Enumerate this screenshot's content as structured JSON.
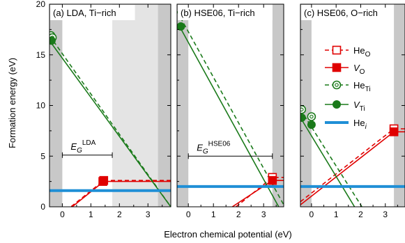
{
  "figure": {
    "ylabel": "Formation energy (eV)",
    "xlabel": "Electron chemical potential (eV)",
    "yticks": [
      "0",
      "5",
      "10",
      "15",
      "20"
    ]
  },
  "legend": [
    {
      "key": "He_O",
      "base": "He",
      "sub": "O",
      "italic": false,
      "color": "#e00000",
      "style": "dashed",
      "marker": "open-square"
    },
    {
      "key": "V_O",
      "base": "V",
      "sub": "O",
      "italic": true,
      "color": "#e00000",
      "style": "solid",
      "marker": "filled-square"
    },
    {
      "key": "He_Ti",
      "base": "He",
      "sub": "Ti",
      "italic": false,
      "color": "#1a7a1a",
      "style": "dashed",
      "marker": "open-circle"
    },
    {
      "key": "V_Ti",
      "base": "V",
      "sub": "Ti",
      "italic": true,
      "color": "#1a7a1a",
      "style": "solid",
      "marker": "filled-circle"
    },
    {
      "key": "He_i",
      "base": "He",
      "sub": "i",
      "italic": false,
      "sub_italic": true,
      "color": "#1f8fd6",
      "style": "thick",
      "marker": "none"
    }
  ],
  "chart_data": [
    {
      "type": "line",
      "title": "(a) LDA, Ti−rich",
      "xlim": [
        -0.45,
        3.8
      ],
      "ylim": [
        0,
        20
      ],
      "xticks": [
        "0",
        "1",
        "2",
        "3"
      ],
      "band_gap": {
        "label": "E",
        "sub": "G",
        "sup": "LDA",
        "from": 0,
        "to": 1.75,
        "y": 5.1
      },
      "shading": {
        "vbm": 0,
        "cbm": 1.75,
        "cb_dark_from": 3.35
      },
      "series": [
        {
          "name": "He_O",
          "x": [
            -0.45,
            1.45,
            3.8
          ],
          "y": [
            -1.7,
            2.6,
            2.6
          ]
        },
        {
          "name": "V_O",
          "x": [
            -0.45,
            1.45,
            3.8
          ],
          "y": [
            -1.8,
            2.5,
            2.5
          ]
        },
        {
          "name": "He_Ti",
          "x": [
            -0.45,
            3.8
          ],
          "y": [
            16.9,
            0
          ]
        },
        {
          "name": "V_Ti",
          "x": [
            -0.45,
            3.8
          ],
          "y": [
            16.4,
            0
          ]
        },
        {
          "name": "He_i",
          "x": [
            -0.45,
            3.8
          ],
          "y": [
            1.6,
            1.6
          ]
        }
      ],
      "markers": [
        {
          "series": "He_Ti",
          "x": [
            -0.4,
            -0.35
          ],
          "y": [
            16.9,
            16.7
          ]
        },
        {
          "series": "V_Ti",
          "x": [
            -0.38
          ],
          "y": [
            16.4
          ]
        },
        {
          "series": "He_O",
          "x": [
            1.45
          ],
          "y": [
            2.6
          ]
        },
        {
          "series": "V_O",
          "x": [
            1.42
          ],
          "y": [
            2.5
          ]
        }
      ]
    },
    {
      "type": "line",
      "title": "(b) HSE06, Ti−rich",
      "xlim": [
        -0.45,
        3.8
      ],
      "ylim": [
        0,
        20
      ],
      "xticks": [
        "0",
        "1",
        "2",
        "3"
      ],
      "band_gap": {
        "label": "E",
        "sub": "G",
        "sup": "HSE06",
        "from": 0,
        "to": 3.35,
        "y": 5.0
      },
      "shading": {
        "vbm": 0,
        "cbm": 3.35,
        "cb_dark_from": 3.35
      },
      "series": [
        {
          "name": "He_O",
          "x": [
            1.9,
            3.35,
            3.8
          ],
          "y": [
            0,
            2.9,
            2.9
          ]
        },
        {
          "name": "V_O",
          "x": [
            1.75,
            3.35,
            3.8
          ],
          "y": [
            0,
            2.6,
            2.6
          ]
        },
        {
          "name": "He_Ti",
          "x": [
            -0.45,
            3.8
          ],
          "y": [
            19.3,
            0.2
          ]
        },
        {
          "name": "V_Ti",
          "x": [
            -0.35,
            3.6
          ],
          "y": [
            17.8,
            0
          ]
        },
        {
          "name": "He_i",
          "x": [
            -0.45,
            3.8
          ],
          "y": [
            2.0,
            2.0
          ]
        }
      ],
      "markers": [
        {
          "series": "V_Ti",
          "x": [
            -0.3
          ],
          "y": [
            17.8
          ]
        },
        {
          "series": "He_O",
          "x": [
            3.35
          ],
          "y": [
            2.9
          ]
        },
        {
          "series": "V_O",
          "x": [
            3.35
          ],
          "y": [
            2.6
          ]
        }
      ]
    },
    {
      "type": "line",
      "title": "(c) HSE06, O−rich",
      "xlim": [
        -0.45,
        3.8
      ],
      "ylim": [
        0,
        20
      ],
      "xticks": [
        "0",
        "1",
        "2",
        "3"
      ],
      "band_gap": null,
      "shading": {
        "vbm": 0,
        "cbm": 3.35,
        "cb_dark_from": 3.35
      },
      "series": [
        {
          "name": "He_O",
          "x": [
            -0.45,
            3.35,
            3.8
          ],
          "y": [
            0.5,
            7.7,
            7.7
          ]
        },
        {
          "name": "V_O",
          "x": [
            -0.45,
            3.35,
            3.8
          ],
          "y": [
            0.2,
            7.4,
            7.4
          ]
        },
        {
          "name": "He_Ti",
          "x": [
            -0.45,
            2.05
          ],
          "y": [
            9.6,
            0
          ]
        },
        {
          "name": "V_Ti",
          "x": [
            -0.45,
            1.75
          ],
          "y": [
            8.8,
            0
          ]
        },
        {
          "name": "He_i",
          "x": [
            -0.45,
            3.8
          ],
          "y": [
            2.0,
            2.0
          ]
        }
      ],
      "markers": [
        {
          "series": "He_Ti",
          "x": [
            -0.4,
            0.0
          ],
          "y": [
            9.6,
            8.9
          ]
        },
        {
          "series": "V_Ti",
          "x": [
            -0.4,
            0.0
          ],
          "y": [
            8.8,
            8.1
          ]
        },
        {
          "series": "He_O",
          "x": [
            3.35
          ],
          "y": [
            7.7
          ]
        },
        {
          "series": "V_O",
          "x": [
            3.35
          ],
          "y": [
            7.4
          ]
        }
      ]
    }
  ]
}
